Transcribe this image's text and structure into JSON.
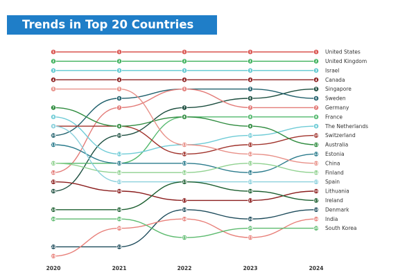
{
  "title": "Trends in Top 20 Countries",
  "chart_data": {
    "type": "line",
    "subtype": "bump",
    "title": "Trends in Top 20 Countries",
    "x": [
      "2020",
      "2021",
      "2022",
      "2023",
      "2024"
    ],
    "y_axis": "rank (1 at top)",
    "ylim": [
      1,
      23
    ],
    "grid": false,
    "legend": "right-end labels",
    "series": [
      {
        "name": "United States",
        "ranks": [
          1,
          1,
          1,
          1,
          1
        ],
        "color": "#d9534f"
      },
      {
        "name": "United Kingdom",
        "ranks": [
          2,
          2,
          2,
          2,
          2
        ],
        "color": "#3cb05a"
      },
      {
        "name": "Israel",
        "ranks": [
          3,
          3,
          3,
          3,
          3
        ],
        "color": "#5ec8d0"
      },
      {
        "name": "Canada",
        "ranks": [
          4,
          4,
          4,
          4,
          4
        ],
        "color": "#8b1e1e"
      },
      {
        "name": "Singapore",
        "ranks": [
          16,
          10,
          7,
          6,
          5
        ],
        "color": "#1b4d3e"
      },
      {
        "name": "Sweden",
        "ranks": [
          10,
          6,
          5,
          5,
          6
        ],
        "color": "#1f5f6b"
      },
      {
        "name": "Germany",
        "ranks": [
          14,
          7,
          5,
          7,
          7
        ],
        "color": "#e37b78"
      },
      {
        "name": "France",
        "ranks": [
          13,
          13,
          8,
          8,
          8
        ],
        "color": "#52b86c"
      },
      {
        "name": "The Netherlands",
        "ranks": [
          8,
          12,
          11,
          10,
          9
        ],
        "color": "#6ecbd6"
      },
      {
        "name": "Switzerland",
        "ranks": [
          9,
          9,
          12,
          11,
          10
        ],
        "color": "#a0322b"
      },
      {
        "name": "Australia",
        "ranks": [
          7,
          9,
          8,
          9,
          11
        ],
        "color": "#2e8b3e"
      },
      {
        "name": "Estonia",
        "ranks": [
          11,
          13,
          13,
          14,
          12
        ],
        "color": "#2a7b8c"
      },
      {
        "name": "China",
        "ranks": [
          5,
          5,
          11,
          12,
          13
        ],
        "color": "#e89088"
      },
      {
        "name": "Finland",
        "ranks": [
          13,
          14,
          14,
          13,
          14
        ],
        "color": "#8fd18f"
      },
      {
        "name": "Spain",
        "ranks": [
          9,
          15,
          15,
          15,
          15
        ],
        "color": "#8ad0dc"
      },
      {
        "name": "Lithuania",
        "ranks": [
          15,
          16,
          17,
          17,
          16
        ],
        "color": "#8a1c1c"
      },
      {
        "name": "Ireland",
        "ranks": [
          18,
          18,
          15,
          16,
          17
        ],
        "color": "#1b5e2f"
      },
      {
        "name": "Denmark",
        "ranks": [
          22,
          22,
          18,
          19,
          18
        ],
        "color": "#1c4a5a"
      },
      {
        "name": "India",
        "ranks": [
          23,
          20,
          19,
          21,
          19
        ],
        "color": "#e8807a"
      },
      {
        "name": "South Korea",
        "ranks": [
          19,
          19,
          21,
          20,
          20
        ],
        "color": "#5cba6e"
      }
    ]
  }
}
